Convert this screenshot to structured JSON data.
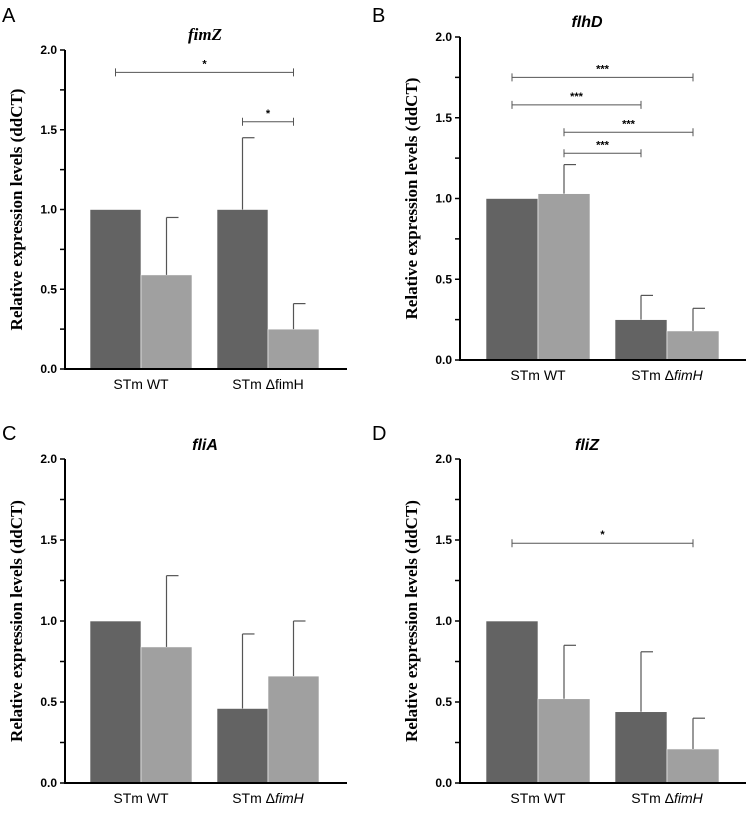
{
  "colors": {
    "series_dark": "#636363",
    "series_light": "#a0a0a0"
  },
  "chart_data": [
    {
      "type": "bar",
      "panel": "A",
      "title": "fimZ",
      "ylabel": "Relative expression levels (ddCT)",
      "ylim": [
        0,
        2.0
      ],
      "yticks": [
        "0.0",
        "0.5",
        "1.0",
        "1.5",
        "2.0"
      ],
      "categories": [
        "STm WT",
        "STm ΔfimH"
      ],
      "italic_strain": false,
      "series": [
        {
          "name": "dark",
          "values": [
            1.0,
            1.0
          ],
          "error_upper": [
            null,
            1.45
          ]
        },
        {
          "name": "light",
          "values": [
            0.59,
            0.25
          ],
          "error_upper": [
            0.95,
            0.41
          ]
        }
      ],
      "significance": [
        {
          "from": [
            0,
            0
          ],
          "to": [
            1,
            1
          ],
          "y": 1.86,
          "label": "*"
        },
        {
          "from": [
            1,
            0
          ],
          "to": [
            1,
            1
          ],
          "y": 1.55,
          "label": "*"
        }
      ]
    },
    {
      "type": "bar",
      "panel": "B",
      "title": "flhD",
      "ylabel": "Relative expression levels (ddCT)",
      "ylim": [
        0,
        2.0
      ],
      "yticks": [
        "0.0",
        "0.5",
        "1.0",
        "1.5",
        "2.0"
      ],
      "categories": [
        "STm WT",
        "STm ΔfimH"
      ],
      "italic_strain": true,
      "series": [
        {
          "name": "dark",
          "values": [
            1.0,
            0.25
          ],
          "error_upper": [
            null,
            0.4
          ]
        },
        {
          "name": "light",
          "values": [
            1.03,
            0.18
          ],
          "error_upper": [
            1.21,
            0.32
          ]
        }
      ],
      "significance": [
        {
          "from": [
            0,
            0
          ],
          "to": [
            1,
            1
          ],
          "y": 1.75,
          "label": "***"
        },
        {
          "from": [
            0,
            0
          ],
          "to": [
            1,
            0
          ],
          "y": 1.58,
          "label": "***"
        },
        {
          "from": [
            0,
            1
          ],
          "to": [
            1,
            1
          ],
          "y": 1.41,
          "label": "***"
        },
        {
          "from": [
            0,
            1
          ],
          "to": [
            1,
            0
          ],
          "y": 1.28,
          "label": "***"
        }
      ]
    },
    {
      "type": "bar",
      "panel": "C",
      "title": "fliA",
      "ylabel": "Relative expression levels (ddCT)",
      "ylim": [
        0,
        2.0
      ],
      "yticks": [
        "0.0",
        "0.5",
        "1.0",
        "1.5",
        "2.0"
      ],
      "categories": [
        "STm WT",
        "STm ΔfimH"
      ],
      "italic_strain": true,
      "series": [
        {
          "name": "dark",
          "values": [
            1.0,
            0.46
          ],
          "error_upper": [
            null,
            0.92
          ]
        },
        {
          "name": "light",
          "values": [
            0.84,
            0.66
          ],
          "error_upper": [
            1.28,
            1.0
          ]
        }
      ],
      "significance": []
    },
    {
      "type": "bar",
      "panel": "D",
      "title": "fliZ",
      "ylabel": "Relative expression levels (ddCT)",
      "ylim": [
        0,
        2.0
      ],
      "yticks": [
        "0.0",
        "0.5",
        "1.0",
        "1.5",
        "2.0"
      ],
      "categories": [
        "STm WT",
        "STm ΔfimH"
      ],
      "italic_strain": true,
      "series": [
        {
          "name": "dark",
          "values": [
            1.0,
            0.44
          ],
          "error_upper": [
            null,
            0.81
          ]
        },
        {
          "name": "light",
          "values": [
            0.52,
            0.21
          ],
          "error_upper": [
            0.85,
            0.4
          ]
        }
      ],
      "significance": [
        {
          "from": [
            0,
            0
          ],
          "to": [
            1,
            1
          ],
          "y": 1.48,
          "label": "*"
        }
      ]
    }
  ]
}
